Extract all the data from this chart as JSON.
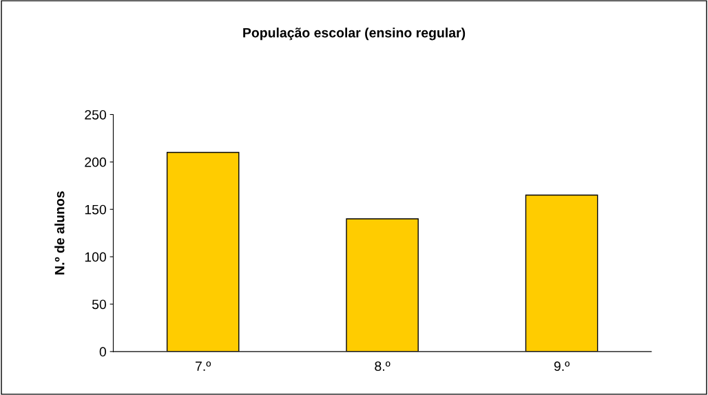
{
  "chart_data": {
    "type": "bar",
    "title": "População escolar (ensino regular)",
    "ylabel": "N.º de alunos",
    "categories": [
      "7.º",
      "8.º",
      "9.º"
    ],
    "values": [
      210,
      140,
      165
    ],
    "color": "#ffcc00",
    "ylim": [
      0,
      250
    ],
    "yticks": [
      0,
      50,
      100,
      150,
      200,
      250
    ],
    "grid": false
  }
}
